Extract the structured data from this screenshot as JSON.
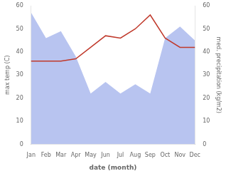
{
  "chart_data": {
    "type": "line",
    "categories": [
      "Jan",
      "Feb",
      "Mar",
      "Apr",
      "May",
      "Jun",
      "Jul",
      "Aug",
      "Sep",
      "Oct",
      "Nov",
      "Dec"
    ],
    "xlabel": "date (month)",
    "ylabel": "max temp (C)",
    "y2label": "med. precipitation (kg/m2)",
    "series": [
      {
        "type": "line",
        "color": "#c0392b",
        "values": [
          36,
          36,
          36,
          37,
          42,
          47,
          46,
          50,
          56,
          46,
          42,
          42
        ]
      },
      {
        "type": "area",
        "axis": "y2",
        "color": "#b8c4f0",
        "values": [
          57,
          46,
          49,
          38,
          22,
          27,
          22,
          26,
          22,
          46,
          51,
          45
        ]
      }
    ],
    "ylim": [
      0,
      60
    ],
    "yticks": [
      0,
      10,
      20,
      30,
      40,
      50,
      60
    ],
    "y2lim": [
      0,
      60
    ],
    "y2ticks": [
      0,
      10,
      20,
      30,
      40,
      50,
      60
    ],
    "grid": false
  }
}
